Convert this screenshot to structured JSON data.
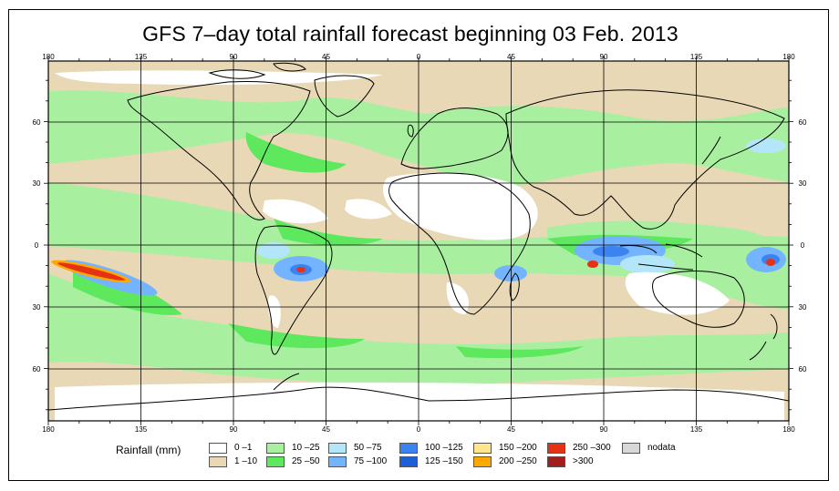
{
  "title": "GFS 7–day total rainfall forecast beginning 03 Feb. 2013",
  "axes": {
    "top_ticks": [
      "180",
      "135",
      "90",
      "45",
      "0",
      "45",
      "90",
      "135",
      "180"
    ],
    "bottom_ticks": [
      "180",
      "135",
      "90",
      "45",
      "0",
      "45",
      "90",
      "135",
      "180"
    ],
    "left_ticks": [
      "60",
      "30",
      "0",
      "30",
      "60"
    ],
    "right_ticks": [
      "60",
      "30",
      "0",
      "30",
      "60"
    ]
  },
  "legend": {
    "label": "Rainfall (mm)",
    "items": [
      {
        "label": "0 –1",
        "color": "#ffffff"
      },
      {
        "label": "1 –10",
        "color": "#e8d8b6"
      },
      {
        "label": "10 –25",
        "color": "#a8f0a0"
      },
      {
        "label": "25 –50",
        "color": "#5ee85e"
      },
      {
        "label": "50 –75",
        "color": "#b4e6fa"
      },
      {
        "label": "75 –100",
        "color": "#74b4ff"
      },
      {
        "label": "100 –125",
        "color": "#3c82f0"
      },
      {
        "label": "125 –150",
        "color": "#1e5fd8"
      },
      {
        "label": "150 –200",
        "color": "#ffe68c"
      },
      {
        "label": "200 –250",
        "color": "#ffa800"
      },
      {
        "label": "250 –300",
        "color": "#e63214"
      },
      {
        "label": ">300",
        "color": "#a01e1e"
      },
      {
        "label": "nodata",
        "color": "#d8d8d8"
      }
    ]
  }
}
